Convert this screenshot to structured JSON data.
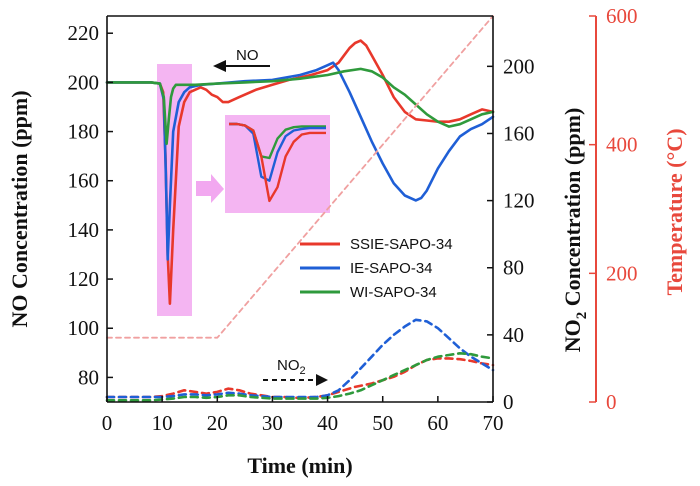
{
  "chart_data": {
    "type": "line",
    "xlabel": "Time (min)",
    "ylabel_left": "NO Concentration (ppm)",
    "ylabel_right1": "NO",
    "ylabel_right1_sub": "2",
    "ylabel_right1_rest": " Concentration (ppm)",
    "ylabel_right2": "Temperature (°C)",
    "xlim": [
      0,
      70
    ],
    "ylim_left": [
      70,
      227
    ],
    "ylim_right1": [
      0,
      230
    ],
    "ylim_right2": [
      0,
      600
    ],
    "x_ticks": [
      "0",
      "10",
      "20",
      "30",
      "40",
      "50",
      "60",
      "70"
    ],
    "y_left_ticks": [
      "80",
      "100",
      "120",
      "140",
      "160",
      "180",
      "200",
      "220"
    ],
    "y_right1_ticks": [
      "0",
      "40",
      "80",
      "120",
      "160",
      "200"
    ],
    "y_right2_ticks": [
      "0",
      "200",
      "400",
      "600"
    ],
    "colors": {
      "ssie": "#e8382b",
      "ie": "#1f5fd6",
      "wi": "#2f9a3c",
      "temp": "#f0a0a0",
      "red_axis": "#e8483c",
      "box": "#f2a8f0"
    },
    "series": [
      {
        "name": "SSIE-SAPO-34",
        "axis": "NO",
        "x": [
          0,
          8,
          9.6,
          10.2,
          10.6,
          11,
          11.4,
          12,
          13,
          14,
          15,
          17,
          18,
          19,
          20,
          21,
          22,
          24,
          27,
          30,
          33,
          37,
          40,
          42,
          43,
          44,
          45,
          46,
          47,
          48,
          50,
          52,
          54,
          56,
          58,
          60,
          62,
          64,
          66,
          68,
          70
        ],
        "y": [
          200,
          200,
          199.5,
          196,
          170,
          130,
          110,
          140,
          182,
          192,
          196,
          198,
          197,
          195,
          194,
          192,
          192,
          194,
          197,
          199,
          201,
          203,
          205,
          208,
          211,
          214,
          216,
          217,
          215,
          211,
          203,
          194,
          188,
          185,
          184.5,
          184,
          184,
          185,
          187,
          189,
          188
        ]
      },
      {
        "name": "IE-SAPO-34",
        "axis": "NO",
        "x": [
          0,
          8,
          9.6,
          10.3,
          10.7,
          11,
          11.4,
          12,
          13,
          14,
          15,
          17,
          20,
          25,
          30,
          35,
          38,
          40,
          41,
          42,
          44,
          46,
          48,
          50,
          52,
          54,
          56,
          57,
          58,
          60,
          62,
          64,
          66,
          68,
          70
        ],
        "y": [
          200,
          200,
          199.5,
          193,
          160,
          128,
          150,
          180,
          192,
          196,
          198,
          199,
          199.5,
          200.5,
          201,
          203,
          205,
          207,
          208,
          205,
          196,
          186,
          176,
          167,
          159,
          154,
          152,
          153,
          156,
          165,
          172,
          178,
          181,
          183,
          186
        ]
      },
      {
        "name": "WI-SAPO-34",
        "axis": "NO",
        "x": [
          0,
          8,
          9.6,
          10.3,
          10.8,
          11.2,
          11.6,
          12,
          12.5,
          13,
          14,
          16,
          20,
          25,
          30,
          35,
          40,
          43,
          46,
          48,
          50,
          52,
          54,
          56,
          58,
          60,
          62,
          64,
          66,
          68,
          70
        ],
        "y": [
          200,
          200,
          199.5,
          194,
          175,
          185,
          194,
          197.5,
          199,
          199,
          199,
          199,
          199.5,
          200,
          200.5,
          201.5,
          203,
          204.5,
          205.5,
          204.5,
          202,
          198,
          195,
          191,
          187,
          184,
          182,
          183,
          185,
          187,
          188
        ]
      },
      {
        "name": "SSIE NO2",
        "axis": "NO2",
        "dashed": true,
        "x": [
          0,
          8,
          10,
          12,
          14,
          16,
          18,
          20,
          22,
          24,
          26,
          28,
          30,
          32,
          34,
          36,
          38,
          40,
          42,
          45,
          48,
          50,
          52,
          54,
          56,
          58,
          60,
          62,
          64,
          66,
          68,
          70
        ],
        "y": [
          3,
          3,
          3.5,
          5,
          7,
          6,
          5,
          6,
          8,
          7,
          5,
          4,
          3,
          3,
          2.5,
          2.5,
          3,
          4,
          6,
          9,
          11,
          13,
          15,
          18,
          22,
          25,
          26,
          26,
          25.5,
          24.5,
          23,
          22
        ]
      },
      {
        "name": "IE NO2",
        "axis": "NO2",
        "dashed": true,
        "x": [
          0,
          8,
          10,
          12,
          14,
          16,
          18,
          20,
          22,
          24,
          26,
          28,
          30,
          32,
          34,
          36,
          38,
          40,
          42,
          44,
          46,
          48,
          50,
          52,
          54,
          56,
          58,
          60,
          62,
          64,
          66,
          68,
          70
        ],
        "y": [
          3,
          3,
          3,
          3.5,
          4.5,
          4.5,
          4,
          4.5,
          5.5,
          5,
          4,
          3.5,
          3,
          3,
          3,
          3,
          3,
          4,
          7,
          13,
          20,
          27,
          34,
          40,
          45,
          49,
          48,
          44,
          38,
          32,
          27,
          23,
          19
        ]
      },
      {
        "name": "WI NO2",
        "axis": "NO2",
        "dashed": true,
        "x": [
          0,
          8,
          10,
          12,
          14,
          16,
          18,
          20,
          22,
          24,
          26,
          28,
          30,
          32,
          34,
          36,
          38,
          40,
          42,
          44,
          46,
          48,
          50,
          52,
          54,
          56,
          58,
          60,
          62,
          64,
          66,
          68,
          70
        ],
        "y": [
          1,
          1,
          1.5,
          2,
          3,
          3,
          2.5,
          3,
          4,
          4,
          3,
          2.5,
          2,
          2,
          2,
          2,
          2,
          2.5,
          3.5,
          5,
          7,
          10,
          13,
          16,
          19,
          22,
          25,
          27,
          28,
          29,
          28.5,
          27,
          26
        ]
      },
      {
        "name": "Temperature",
        "axis": "T",
        "dashed": true,
        "x": [
          0,
          20,
          70
        ],
        "y": [
          100,
          100,
          600
        ]
      }
    ],
    "inset": {
      "SSIE-SAPO-34": [
        0,
        0,
        0.02,
        0.08,
        0.4,
        0.95,
        0.78,
        0.4,
        0.22,
        0.13,
        0.11,
        0.11,
        0.11
      ],
      "IE-SAPO-34": [
        0,
        0,
        0.02,
        0.12,
        0.65,
        0.7,
        0.35,
        0.15,
        0.08,
        0.06,
        0.05,
        0.05,
        0.05
      ],
      "WI-SAPO-34": [
        0,
        0,
        0.02,
        0.08,
        0.4,
        0.42,
        0.18,
        0.07,
        0.04,
        0.03,
        0.03,
        0.03,
        0.03
      ]
    },
    "legend": [
      "SSIE-SAPO-34",
      "IE-SAPO-34",
      "WI-SAPO-34"
    ],
    "annotations": {
      "no_label": "NO",
      "no2_label": "NO",
      "no2_sub": "2"
    }
  }
}
